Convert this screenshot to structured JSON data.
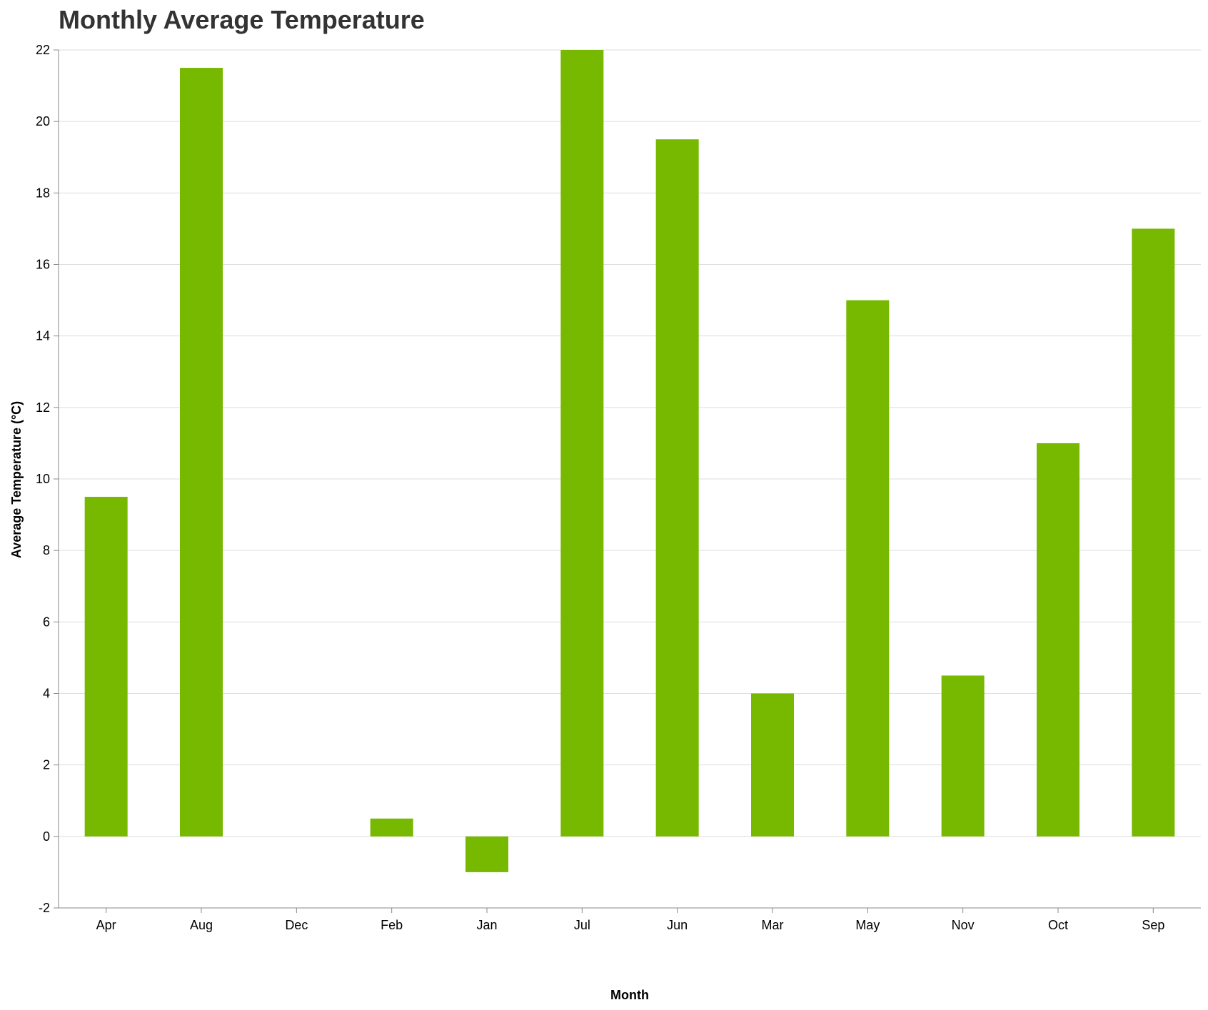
{
  "chart_data": {
    "type": "bar",
    "title": "Monthly Average Temperature",
    "xlabel": "Month",
    "ylabel": "Average Temperature (°C)",
    "categories": [
      "Apr",
      "Aug",
      "Dec",
      "Feb",
      "Jan",
      "Jul",
      "Jun",
      "Mar",
      "May",
      "Nov",
      "Oct",
      "Sep"
    ],
    "values": [
      9.5,
      21.5,
      0,
      0.5,
      -1,
      22,
      19.5,
      4,
      15,
      4.5,
      11,
      17
    ],
    "ylim": [
      -2,
      22
    ],
    "yticks": [
      "-2",
      "0",
      "2",
      "4",
      "6",
      "8",
      "10",
      "12",
      "14",
      "16",
      "18",
      "20",
      "22"
    ],
    "grid": true,
    "legend": "none",
    "bar_color": "#77b800",
    "grid_color": "#dddddd",
    "axis_color": "#888888"
  }
}
